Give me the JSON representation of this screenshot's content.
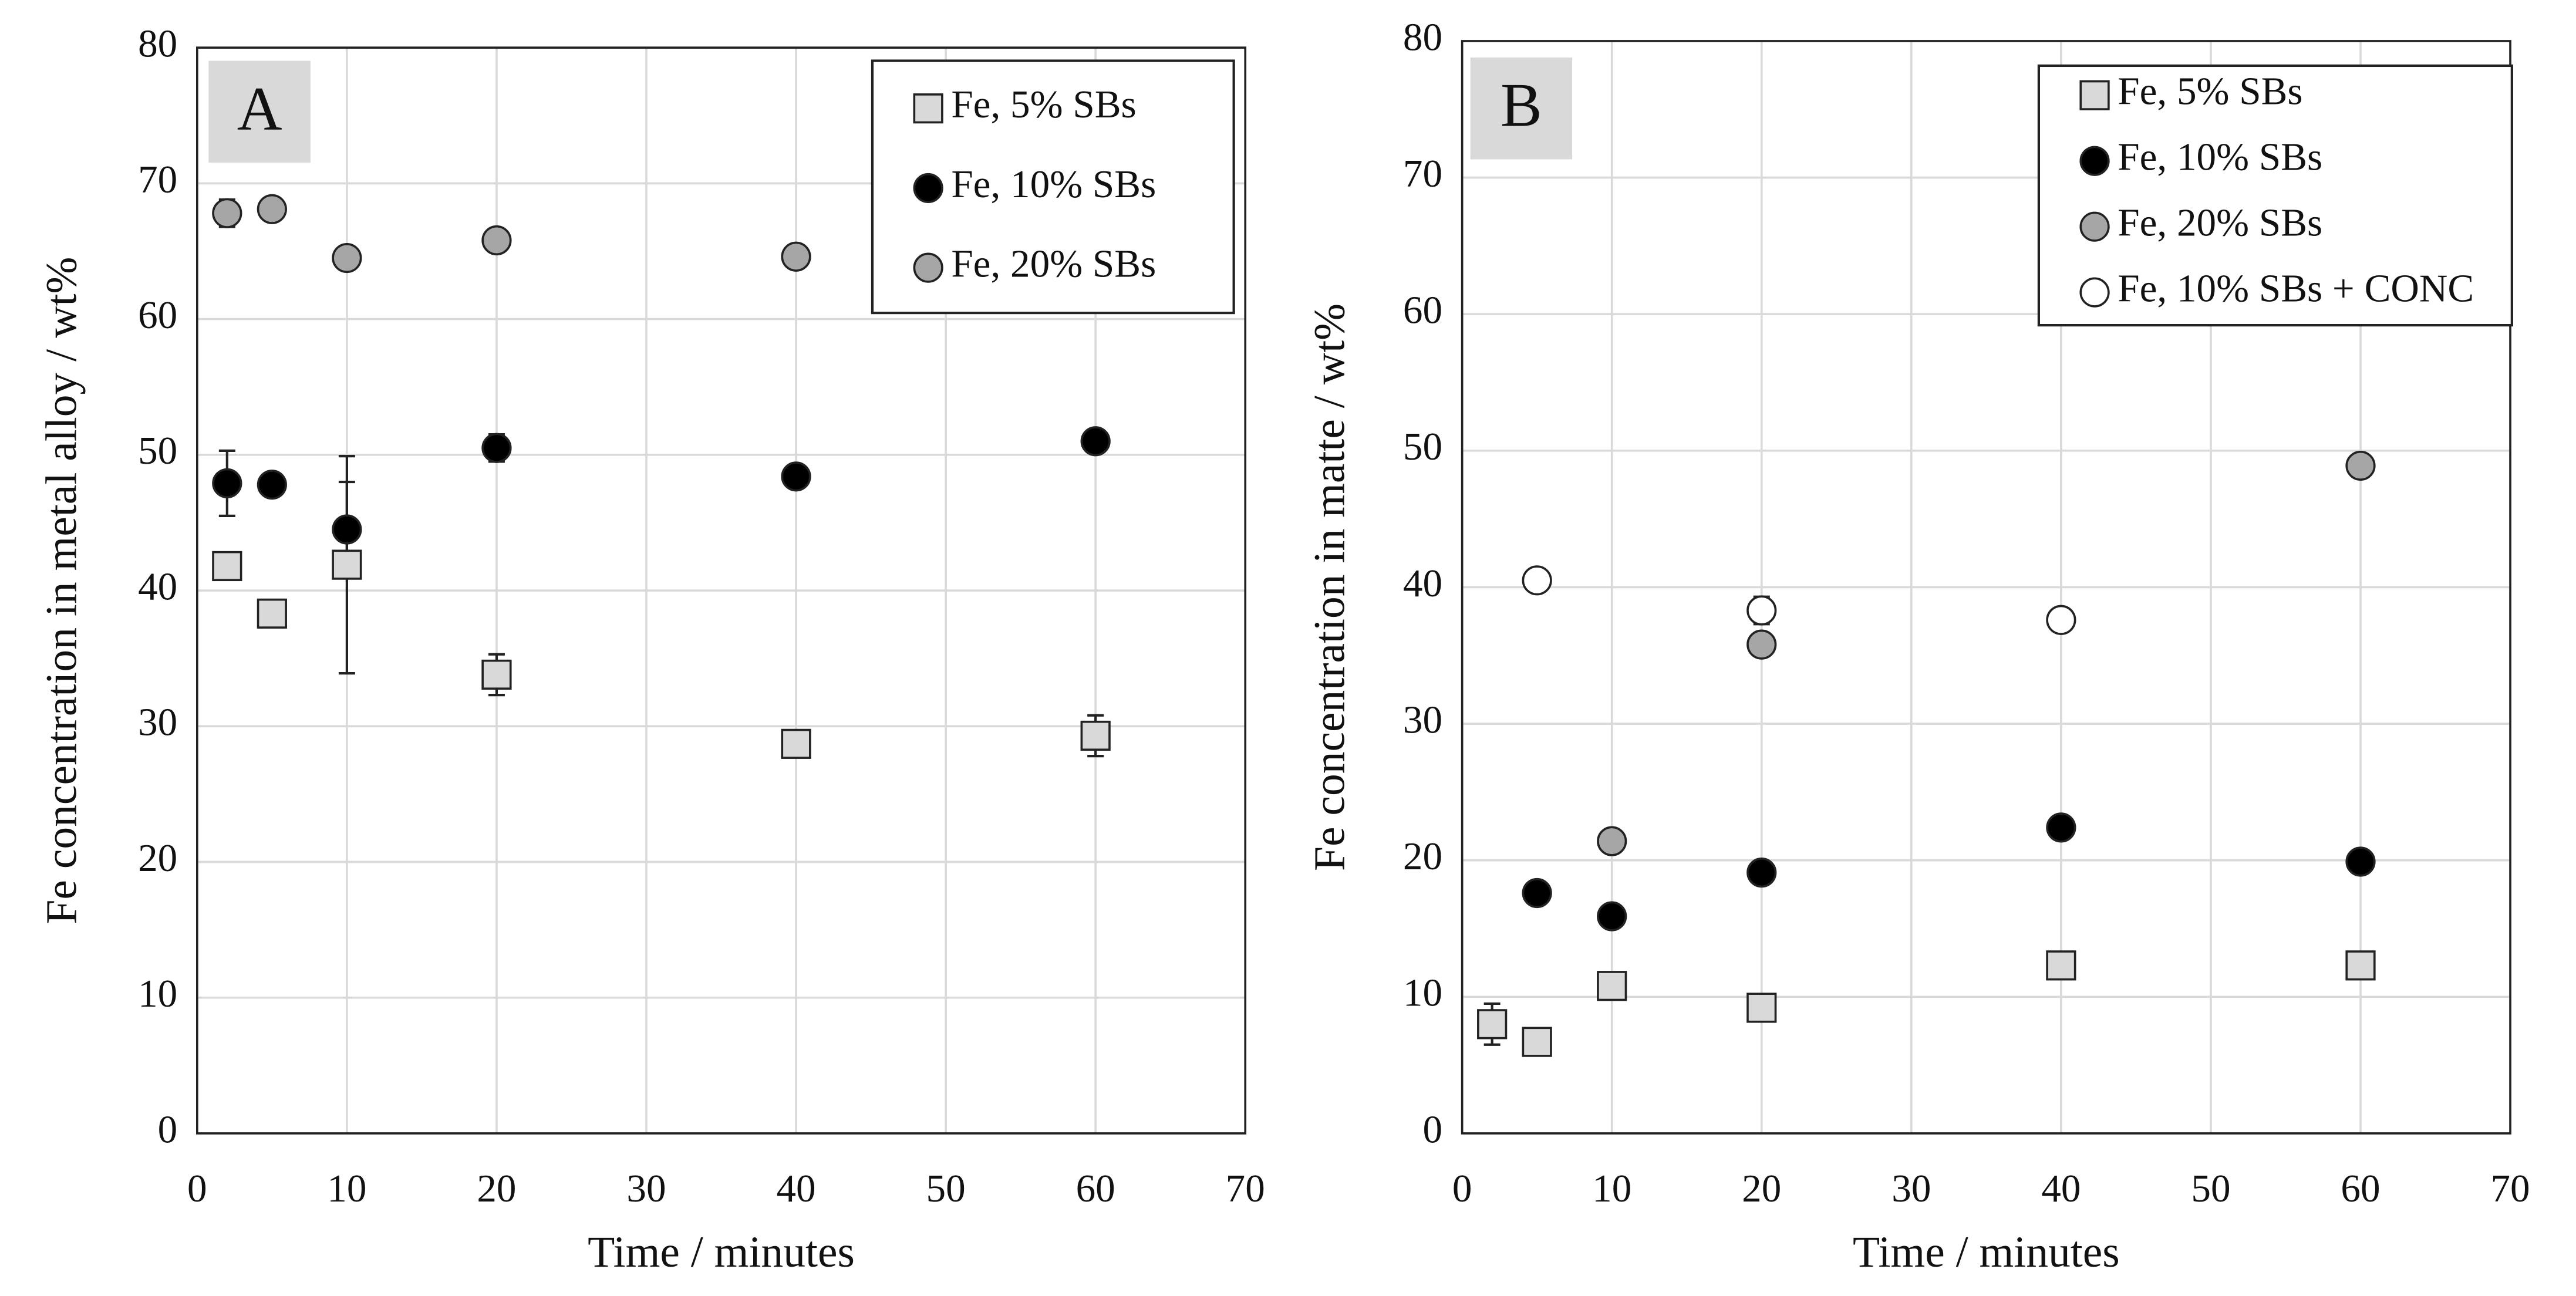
{
  "chart_data": [
    {
      "type": "scatter",
      "panel_label": "A",
      "x_label": "Time / minutes",
      "y_label": "Fe concentration in metal alloy / wt%",
      "xlim": [
        0,
        70
      ],
      "xticks": [
        0,
        10,
        20,
        30,
        40,
        50,
        60,
        70
      ],
      "ylim": [
        0,
        80
      ],
      "yticks": [
        0,
        10,
        20,
        30,
        40,
        50,
        60,
        70,
        80
      ],
      "grid": true,
      "legend": "top right",
      "series": [
        {
          "name": "Fe, 5% SBs",
          "marker": "square",
          "color": "#d9d9d9",
          "x": [
            2,
            5,
            10,
            20,
            40,
            60
          ],
          "values": [
            41.8,
            38.3,
            41.9,
            33.8,
            28.7,
            29.3
          ],
          "errors": [
            1,
            null,
            8,
            1.5,
            null,
            1.5
          ]
        },
        {
          "name": "Fe, 10% SBs",
          "marker": "circle",
          "color": "#000000",
          "x": [
            2,
            5,
            10,
            20,
            40,
            60
          ],
          "values": [
            47.9,
            47.8,
            44.5,
            50.5,
            48.4,
            51
          ],
          "errors": [
            2.4,
            null,
            3.5,
            1,
            null,
            null
          ]
        },
        {
          "name": "Fe, 20% SBs",
          "marker": "circle",
          "color": "#a6a6a6",
          "x": [
            2,
            5,
            10,
            20,
            40
          ],
          "values": [
            67.8,
            68.1,
            64.5,
            65.8,
            64.6
          ],
          "errors": [
            1,
            null,
            null,
            null,
            null
          ]
        }
      ]
    },
    {
      "type": "scatter",
      "panel_label": "B",
      "x_label": "Time / minutes",
      "y_label": "Fe concentration in matte / wt%",
      "xlim": [
        0,
        70
      ],
      "xticks": [
        0,
        10,
        20,
        30,
        40,
        50,
        60,
        70
      ],
      "ylim": [
        0,
        80
      ],
      "yticks": [
        0,
        10,
        20,
        30,
        40,
        50,
        60,
        70,
        80
      ],
      "grid": true,
      "legend": "top right",
      "series": [
        {
          "name": "Fe, 5% SBs",
          "marker": "square",
          "color": "#d9d9d9",
          "x": [
            2,
            5,
            10,
            20,
            40,
            60
          ],
          "values": [
            8,
            6.7,
            10.8,
            9.2,
            12.3,
            12.3
          ],
          "errors": [
            1.5,
            null,
            null,
            null,
            null,
            null
          ]
        },
        {
          "name": "Fe, 10% SBs",
          "marker": "circle",
          "color": "#000000",
          "x": [
            5,
            10,
            20,
            40,
            60
          ],
          "values": [
            17.6,
            15.9,
            19.1,
            22.4,
            19.9
          ],
          "errors": [
            null,
            null,
            null,
            null,
            null
          ]
        },
        {
          "name": "Fe, 20% SBs",
          "marker": "circle",
          "color": "#a6a6a6",
          "x": [
            10,
            20,
            60
          ],
          "values": [
            21.4,
            35.8,
            48.9
          ],
          "errors": [
            null,
            null,
            null
          ]
        },
        {
          "name": "Fe, 10% SBs + CONC",
          "marker": "circle",
          "color": "#ffffff",
          "x": [
            5,
            20,
            40
          ],
          "values": [
            40.5,
            38.3,
            37.6
          ],
          "errors": [
            null,
            1,
            null
          ]
        }
      ]
    }
  ]
}
